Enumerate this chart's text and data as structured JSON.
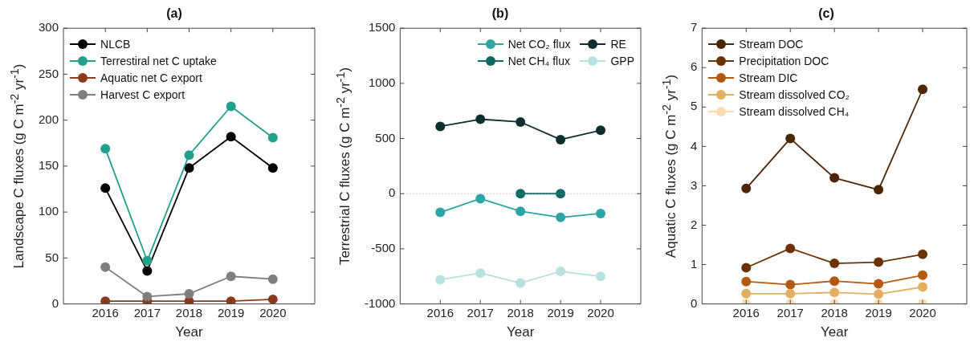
{
  "chart_data": [
    {
      "type": "line",
      "title": "(a)",
      "xlabel": "Year",
      "ylabel": "Landscape C fluxes (g C m$^{-2}$ yr$^{-1}$)",
      "x": [
        2016,
        2017,
        2018,
        2019,
        2020
      ],
      "xlim": [
        2015,
        2021
      ],
      "xticks": [
        2016,
        2017,
        2018,
        2019,
        2020
      ],
      "ylim": [
        0,
        300
      ],
      "yticks": [
        0,
        50,
        100,
        150,
        200,
        250,
        300
      ],
      "legend": "top left",
      "marker": "circle",
      "line_style": "solid",
      "series": [
        {
          "name": "NLCB",
          "color": "#000000",
          "values": [
            126,
            36,
            148,
            182,
            148
          ]
        },
        {
          "name": "Terrestiral net C uptake",
          "color": "#21a08c",
          "values": [
            169,
            47,
            162,
            215,
            181
          ]
        },
        {
          "name": "Aquatic net C export",
          "color": "#8b3a1a",
          "values": [
            3,
            3,
            3,
            3,
            5
          ]
        },
        {
          "name": "Harvest C export",
          "color": "#7f7f7f",
          "values": [
            40,
            8,
            11,
            30,
            27
          ]
        }
      ]
    },
    {
      "type": "line",
      "title": "(b)",
      "xlabel": "Year",
      "ylabel": "Terrestrial C fluxes (g C m$^{-2}$ yr$^{-1}$)",
      "x": [
        2016,
        2017,
        2018,
        2019,
        2020
      ],
      "xlim": [
        2015,
        2021
      ],
      "xticks": [
        2016,
        2017,
        2018,
        2019,
        2020
      ],
      "ylim": [
        -1000,
        1500
      ],
      "yticks": [
        -1000,
        -500,
        0,
        500,
        1000,
        1500
      ],
      "legend": "top right",
      "marker": "circle",
      "line_style": "solid",
      "ref_lines": [
        {
          "axis": "y",
          "value": 0,
          "color": "#999999",
          "line_style": "dotted"
        }
      ],
      "series": [
        {
          "name": "Net CO₂ flux",
          "color": "#2ca6a4",
          "values": [
            -170,
            -45,
            -160,
            -215,
            -180
          ]
        },
        {
          "name": "Net CH₄ flux",
          "color": "#0e6b64",
          "values": [
            null,
            null,
            0,
            0,
            null
          ]
        },
        {
          "name": "RE",
          "color": "#0b302e",
          "values": [
            610,
            675,
            650,
            490,
            575
          ]
        },
        {
          "name": "GPP",
          "color": "#b8e2e0",
          "values": [
            -780,
            -720,
            -810,
            -705,
            -750
          ]
        }
      ]
    },
    {
      "type": "line",
      "title": "(c)",
      "xlabel": "Year",
      "ylabel": "Aquatic C fluxes (g C m$^{-2}$ yr$^{-1}$)",
      "x": [
        2016,
        2017,
        2018,
        2019,
        2020
      ],
      "xlim": [
        2015,
        2021
      ],
      "xticks": [
        2016,
        2017,
        2018,
        2019,
        2020
      ],
      "ylim": [
        0,
        7
      ],
      "yticks": [
        0,
        1,
        2,
        3,
        4,
        5,
        6,
        7
      ],
      "legend": "top left",
      "marker": "circle",
      "line_style": "solid",
      "series": [
        {
          "name": "Stream DOC",
          "color": "#4a2506",
          "values": [
            2.93,
            4.2,
            3.2,
            2.9,
            5.45
          ]
        },
        {
          "name": "Precipitation DOC",
          "color": "#6b3206",
          "values": [
            0.92,
            1.41,
            1.03,
            1.06,
            1.26
          ]
        },
        {
          "name": "Stream DIC",
          "color": "#b35a12",
          "values": [
            0.57,
            0.49,
            0.58,
            0.51,
            0.73
          ]
        },
        {
          "name": "Stream dissolved CO₂",
          "color": "#e2b060",
          "values": [
            0.26,
            0.26,
            0.29,
            0.25,
            0.43
          ]
        },
        {
          "name": "Stream dissolved CH₄",
          "color": "#fbdcb0",
          "values": [
            0,
            0,
            0,
            0,
            0
          ]
        }
      ]
    }
  ]
}
